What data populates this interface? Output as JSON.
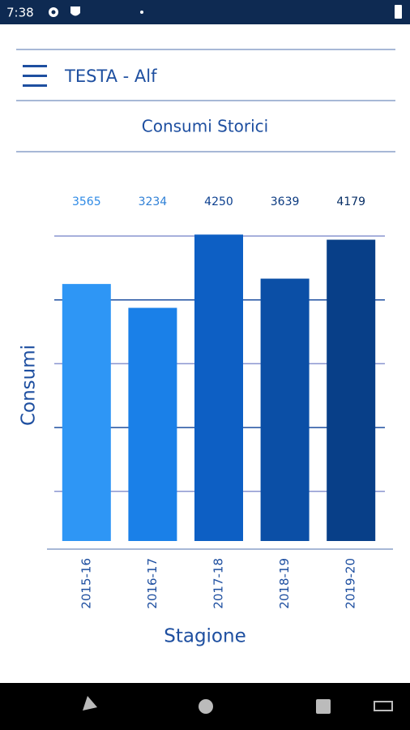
{
  "status_bar": {
    "time": "7:38"
  },
  "header": {
    "title": "TESTA - Alf"
  },
  "page_title": "Consumi Storici",
  "chart_data": {
    "type": "bar",
    "categories": [
      "2015-16",
      "2016-17",
      "2017-18",
      "2018-19",
      "2019-20"
    ],
    "values": [
      3565,
      3234,
      4250,
      3639,
      4179
    ],
    "colors": [
      "#2e96f5",
      "#1a80e8",
      "#0d5fc4",
      "#0b4fa6",
      "#083f88"
    ],
    "label_colors": [
      "#2e8ae6",
      "#2e7fd6",
      "#0b3f8f",
      "#0b3a80",
      "#082f66"
    ],
    "xlabel": "Stagione",
    "ylabel": "Consumi",
    "ylim": [
      0,
      4500
    ],
    "grid": true
  }
}
